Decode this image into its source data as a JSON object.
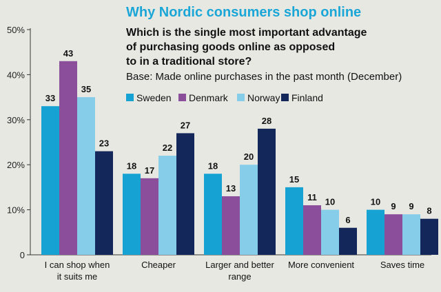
{
  "chart_data": {
    "type": "bar",
    "title": "Why Nordic consumers shop online",
    "subtitle_lines": [
      "Which is the single most important advantage",
      "of purchasing goods online as opposed",
      "to in a traditional store?"
    ],
    "base_note": "Base: Made online purchases in the past month (December)",
    "categories": [
      [
        "I can shop when",
        "it suits me"
      ],
      [
        "Cheaper"
      ],
      [
        "Larger and better",
        "range"
      ],
      [
        "More convenient"
      ],
      [
        "Saves time"
      ]
    ],
    "series": [
      {
        "name": "Sweden",
        "color": "#16a2d2",
        "values": [
          33,
          18,
          18,
          15,
          10
        ]
      },
      {
        "name": "Denmark",
        "color": "#8b4e9b",
        "values": [
          43,
          17,
          13,
          11,
          9
        ]
      },
      {
        "name": "Norway",
        "color": "#86cdea",
        "values": [
          35,
          22,
          20,
          10,
          9
        ]
      },
      {
        "name": "Finland",
        "color": "#14275a",
        "values": [
          23,
          27,
          28,
          6,
          8
        ]
      }
    ],
    "y_ticks": [
      "0",
      "10%",
      "20%",
      "30%",
      "40%",
      "50%"
    ],
    "ylim": [
      0,
      50
    ],
    "xlabel": "",
    "ylabel": "",
    "grid": false,
    "legend_position": "top"
  }
}
